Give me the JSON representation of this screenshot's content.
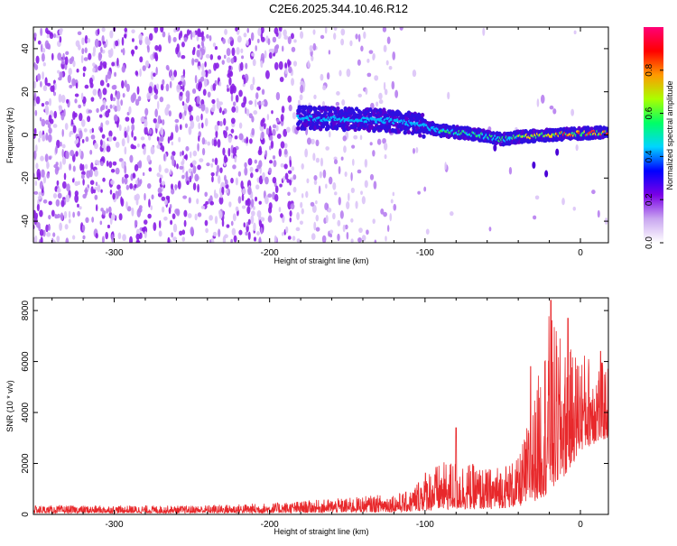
{
  "title": "C2E6.2025.344.10.46.R12",
  "chart_data": [
    {
      "type": "heatmap",
      "name": "spectrogram",
      "xlabel": "Height of straight line (km)",
      "ylabel": "Frequency (Hz)",
      "xlim": [
        -352,
        18
      ],
      "ylim": [
        -50,
        50
      ],
      "xticks": [
        -300,
        -200,
        -100,
        0
      ],
      "yticks": [
        -40,
        -20,
        0,
        20,
        40
      ],
      "ridge": [
        {
          "x": -182,
          "y": 8
        },
        {
          "x": -160,
          "y": 7.5
        },
        {
          "x": -140,
          "y": 7
        },
        {
          "x": -120,
          "y": 6.5
        },
        {
          "x": -105,
          "y": 5
        },
        {
          "x": -90,
          "y": 2
        },
        {
          "x": -70,
          "y": 0.5
        },
        {
          "x": -50,
          "y": -2
        },
        {
          "x": -40,
          "y": -1
        },
        {
          "x": -20,
          "y": 0
        },
        {
          "x": -5,
          "y": 0.5
        },
        {
          "x": 10,
          "y": 1
        },
        {
          "x": 18,
          "y": 1
        }
      ],
      "colorbar": {
        "label": "Normalized spectral amplitude",
        "ticks": [
          "0.0",
          "0.2",
          "0.4",
          "0.6",
          "0.8"
        ],
        "colors": [
          "#ffffff",
          "#c9a6f0",
          "#7a00e6",
          "#0000ff",
          "#00d5ff",
          "#00ff66",
          "#aaff00",
          "#ff9900",
          "#ff0000",
          "#ff0077"
        ]
      }
    },
    {
      "type": "line",
      "name": "snr",
      "xlabel": "Height of straight line (km)",
      "ylabel": "SNR (10 * v/v)",
      "xlim": [
        -352,
        18
      ],
      "ylim": [
        0,
        8500
      ],
      "xticks": [
        -300,
        -200,
        -100,
        0
      ],
      "yticks": [
        0,
        2000,
        4000,
        6000,
        8000
      ],
      "color": "#e8282b",
      "envelope": [
        {
          "x": -352,
          "lo": 50,
          "hi": 350
        },
        {
          "x": -250,
          "lo": 50,
          "hi": 350
        },
        {
          "x": -200,
          "lo": 50,
          "hi": 450
        },
        {
          "x": -150,
          "lo": 80,
          "hi": 650
        },
        {
          "x": -110,
          "lo": 100,
          "hi": 900
        },
        {
          "x": -100,
          "lo": 150,
          "hi": 1800
        },
        {
          "x": -80,
          "lo": 200,
          "hi": 2200
        },
        {
          "x": -60,
          "lo": 200,
          "hi": 1800
        },
        {
          "x": -40,
          "lo": 300,
          "hi": 2200
        },
        {
          "x": -30,
          "lo": 500,
          "hi": 4500
        },
        {
          "x": -20,
          "lo": 800,
          "hi": 8000
        },
        {
          "x": -10,
          "lo": 1500,
          "hi": 6500
        },
        {
          "x": 0,
          "lo": 2500,
          "hi": 6500
        },
        {
          "x": 10,
          "lo": 2800,
          "hi": 6200
        },
        {
          "x": 18,
          "lo": 3000,
          "hi": 5800
        }
      ],
      "spikes": [
        {
          "x": -19,
          "y": 8400
        },
        {
          "x": -8,
          "y": 7700
        },
        {
          "x": -80,
          "y": 3400
        },
        {
          "x": -32,
          "y": 5800
        },
        {
          "x": 13,
          "y": 6400
        }
      ]
    }
  ]
}
